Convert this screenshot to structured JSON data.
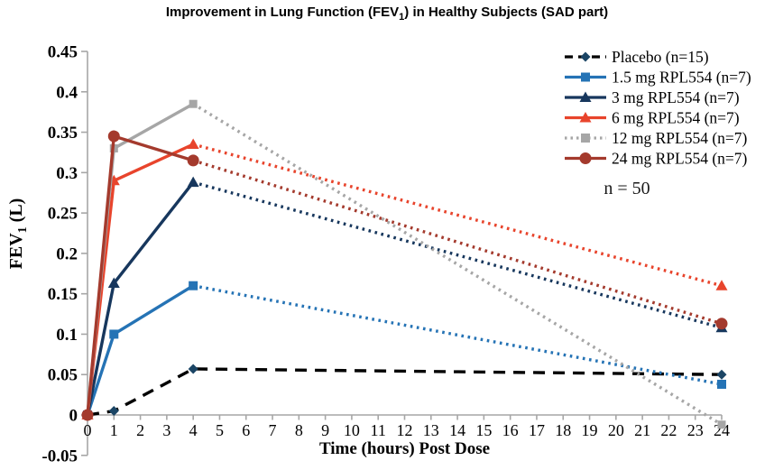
{
  "title": {
    "prefix": "Improvement in Lung Function (FEV",
    "sub": "1",
    "suffix": ") in Healthy Subjects (SAD part)"
  },
  "y_axis_title": {
    "prefix": "FEV",
    "sub": "1",
    "suffix": " (L)"
  },
  "x_axis_title": "Time (hours) Post Dose",
  "annotation": "n = 50",
  "axes": {
    "y": {
      "tick_labels": [
        "0.45",
        "0.4",
        "0.35",
        "0.3",
        "0.25",
        "0.2",
        "0.15",
        "0.1",
        "0.05",
        "0",
        "-0.05"
      ],
      "tick_values": [
        0.45,
        0.4,
        0.35,
        0.3,
        0.25,
        0.2,
        0.15,
        0.1,
        0.05,
        0,
        -0.05
      ]
    },
    "x": {
      "tick_labels": [
        "0",
        "1",
        "2",
        "3",
        "4",
        "5",
        "6",
        "7",
        "8",
        "9",
        "10",
        "11",
        "12",
        "13",
        "14",
        "15",
        "16",
        "17",
        "18",
        "19",
        "20",
        "21",
        "22",
        "23",
        "24"
      ],
      "tick_values": [
        0,
        1,
        2,
        3,
        4,
        5,
        6,
        7,
        8,
        9,
        10,
        11,
        12,
        13,
        14,
        15,
        16,
        17,
        18,
        19,
        20,
        21,
        22,
        23,
        24
      ]
    }
  },
  "chart_data": {
    "type": "line",
    "title": "Improvement in Lung Function (FEV1) in Healthy Subjects (SAD part)",
    "xlabel": "Time (hours) Post Dose",
    "ylabel": "FEV1 (L)",
    "xlim": [
      0,
      24
    ],
    "ylim": [
      -0.05,
      0.45
    ],
    "grid": false,
    "legend_position": "top-right",
    "sample_size_note": "n = 50",
    "x": [
      0,
      1,
      4,
      24
    ],
    "series": [
      {
        "name": "Placebo (n=15)",
        "values": [
          0,
          0.005,
          0.057,
          0.05
        ],
        "color": "#000000",
        "marker": "diamond",
        "marker_color": "#1B4565",
        "line_style": "dashed",
        "legend_style": "dashed"
      },
      {
        "name": "1.5 mg RPL554 (n=7)",
        "values": [
          0,
          0.1,
          0.16,
          0.038
        ],
        "color": "#2573B5",
        "marker": "square",
        "marker_color": "#2573B5",
        "line_style": "solid_then_dotted",
        "legend_style": "solid"
      },
      {
        "name": "3 mg RPL554 (n=7)",
        "values": [
          0,
          0.163,
          0.288,
          0.108
        ],
        "color": "#17375D",
        "marker": "triangle",
        "marker_color": "#17375D",
        "line_style": "solid_then_dotted",
        "legend_style": "solid"
      },
      {
        "name": "6 mg RPL554 (n=7)",
        "values": [
          0,
          0.29,
          0.335,
          0.16
        ],
        "color": "#E8442C",
        "marker": "triangle",
        "marker_color": "#E8442C",
        "line_style": "solid_then_dotted",
        "legend_style": "solid"
      },
      {
        "name": "12 mg RPL554 (n=7)",
        "values": [
          0,
          0.33,
          0.385,
          -0.012
        ],
        "color": "#A6A6A6",
        "marker": "square",
        "marker_color": "#A6A6A6",
        "line_style": "solid_then_dotted",
        "legend_style": "dotted"
      },
      {
        "name": "24 mg RPL554 (n=7)",
        "values": [
          0,
          0.345,
          0.315,
          0.113
        ],
        "color": "#A43A2D",
        "marker": "circle",
        "marker_color": "#A43A2D",
        "line_style": "solid_then_dotted",
        "legend_style": "solid"
      }
    ],
    "axis_color": "#A6A6A6",
    "text_color": "#000000"
  }
}
